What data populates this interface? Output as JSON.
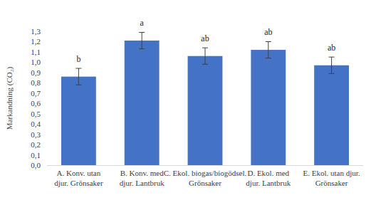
{
  "chart_data": {
    "type": "bar",
    "y_label": "Markandning (CO₂)",
    "categories": [
      "A. Konv. utan\ndjur. Grönsaker",
      "B. Konv. med\ndjur. Lantbruk",
      "C. Ekol. biogas/biogödsel.\nGrönsaker",
      "D. Ekol. med\ndjur. Lantbruk",
      "E. Ekol. utan djur.\nGrönsaker"
    ],
    "values": [
      0.86,
      1.21,
      1.06,
      1.12,
      0.97
    ],
    "errors": [
      0.08,
      0.08,
      0.08,
      0.08,
      0.08
    ],
    "significance_labels": [
      "b",
      "a",
      "ab",
      "ab",
      "ab"
    ],
    "color": "#4472c4",
    "ylim": [
      0,
      1.3
    ],
    "yticks": [
      {
        "value": 0,
        "label": "0,0"
      },
      {
        "value": 0.1,
        "label": "0,1"
      },
      {
        "value": 0.2,
        "label": "0,2"
      },
      {
        "value": 0.3,
        "label": "0,3"
      },
      {
        "value": 0.4,
        "label": "0,4"
      },
      {
        "value": 0.5,
        "label": "0,5"
      },
      {
        "value": 0.6,
        "label": "0,6"
      },
      {
        "value": 0.7,
        "label": "0,7"
      },
      {
        "value": 0.8,
        "label": "0,8"
      },
      {
        "value": 0.9,
        "label": "0,9"
      },
      {
        "value": 1.0,
        "label": "1,0"
      },
      {
        "value": 1.1,
        "label": "1,1"
      },
      {
        "value": 1.2,
        "label": "1,2"
      },
      {
        "value": 1.3,
        "label": "1,3"
      }
    ],
    "grid": false
  }
}
